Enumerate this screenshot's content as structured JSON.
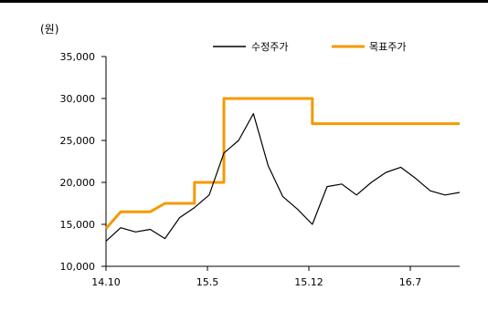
{
  "chart_data": {
    "type": "line",
    "unit_label": "(원)",
    "y_ticks": [
      "35,000",
      "30,000",
      "25,000",
      "20,000",
      "15,000",
      "10,000"
    ],
    "x_ticks": [
      "14.10",
      "15.5",
      "15.12",
      "16.7"
    ],
    "ylim": [
      10000,
      35000
    ],
    "xlim": [
      "2014-10",
      "2016-10"
    ],
    "legend_position": "top-right",
    "grid": false,
    "series": [
      {
        "name": "수정주가",
        "color": "#000000",
        "points": [
          [
            "2014-10",
            13000
          ],
          [
            "2014-11",
            14600
          ],
          [
            "2014-12",
            14100
          ],
          [
            "2015-01",
            14400
          ],
          [
            "2015-02",
            13300
          ],
          [
            "2015-03",
            15800
          ],
          [
            "2015-04",
            17000
          ],
          [
            "2015-05",
            18500
          ],
          [
            "2015-06",
            23500
          ],
          [
            "2015-07",
            25000
          ],
          [
            "2015-08",
            28200
          ],
          [
            "2015-09",
            22000
          ],
          [
            "2015-10",
            18300
          ],
          [
            "2015-11",
            16800
          ],
          [
            "2015-12",
            15000
          ],
          [
            "2016-01",
            19500
          ],
          [
            "2016-02",
            19800
          ],
          [
            "2016-03",
            18500
          ],
          [
            "2016-04",
            20000
          ],
          [
            "2016-05",
            21200
          ],
          [
            "2016-06",
            21800
          ],
          [
            "2016-07",
            20500
          ],
          [
            "2016-08",
            19000
          ],
          [
            "2016-09",
            18500
          ],
          [
            "2016-10",
            18800
          ]
        ]
      },
      {
        "name": "목표주가",
        "color": "#f59a00",
        "points": [
          [
            "2014-10",
            14500
          ],
          [
            "2014-11",
            16500
          ],
          [
            "2015-01",
            16500
          ],
          [
            "2015-02",
            17500
          ],
          [
            "2015-04",
            17500
          ],
          [
            "2015-04",
            20000
          ],
          [
            "2015-06",
            20000
          ],
          [
            "2015-06",
            30000
          ],
          [
            "2015-12",
            30000
          ],
          [
            "2015-12",
            27000
          ],
          [
            "2016-10",
            27000
          ]
        ]
      }
    ]
  }
}
